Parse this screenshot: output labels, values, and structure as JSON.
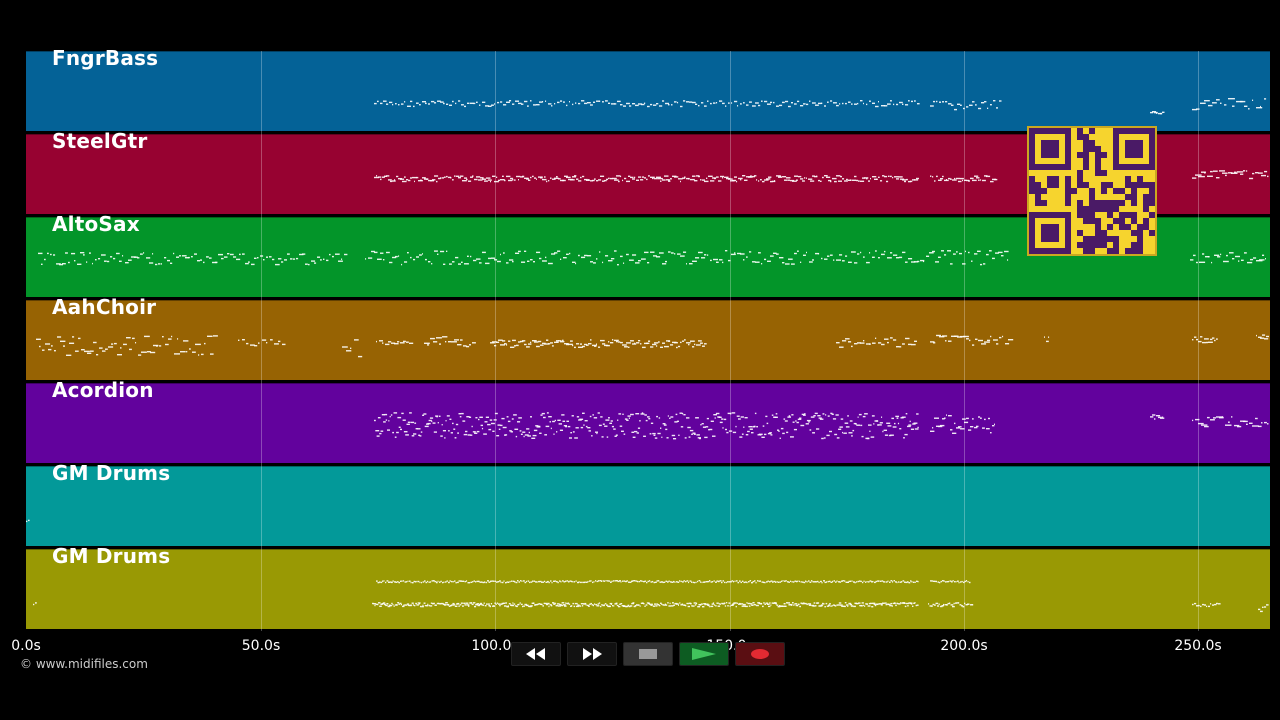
{
  "tracks": [
    {
      "name": "FngrBass",
      "color": "#046297"
    },
    {
      "name": "SteelGtr",
      "color": "#970231"
    },
    {
      "name": "AltoSax",
      "color": "#039529"
    },
    {
      "name": "AahChoir",
      "color": "#976303"
    },
    {
      "name": "Acordion",
      "color": "#62029d"
    },
    {
      "name": "GM Drums",
      "color": "#039999"
    },
    {
      "name": "GM Drums",
      "color": "#999904"
    }
  ],
  "timeline": {
    "ticks": [
      "0.0s",
      "50.0s",
      "100.0s",
      "150.0s",
      "200.0s",
      "250.0s"
    ]
  },
  "copyright": "© www.midifiles.com",
  "transport": {
    "buttons": [
      {
        "name": "rewind-button",
        "icon": "rewind-icon"
      },
      {
        "name": "fast-forward-button",
        "icon": "fast-forward-icon"
      },
      {
        "name": "stop-button",
        "icon": "stop-icon"
      },
      {
        "name": "play-button",
        "icon": "play-icon"
      },
      {
        "name": "record-button",
        "icon": "record-icon"
      }
    ]
  },
  "qr_code": {
    "icon": "qr-code-icon",
    "color": "#f6d42e",
    "fg": "#4a1a66"
  }
}
